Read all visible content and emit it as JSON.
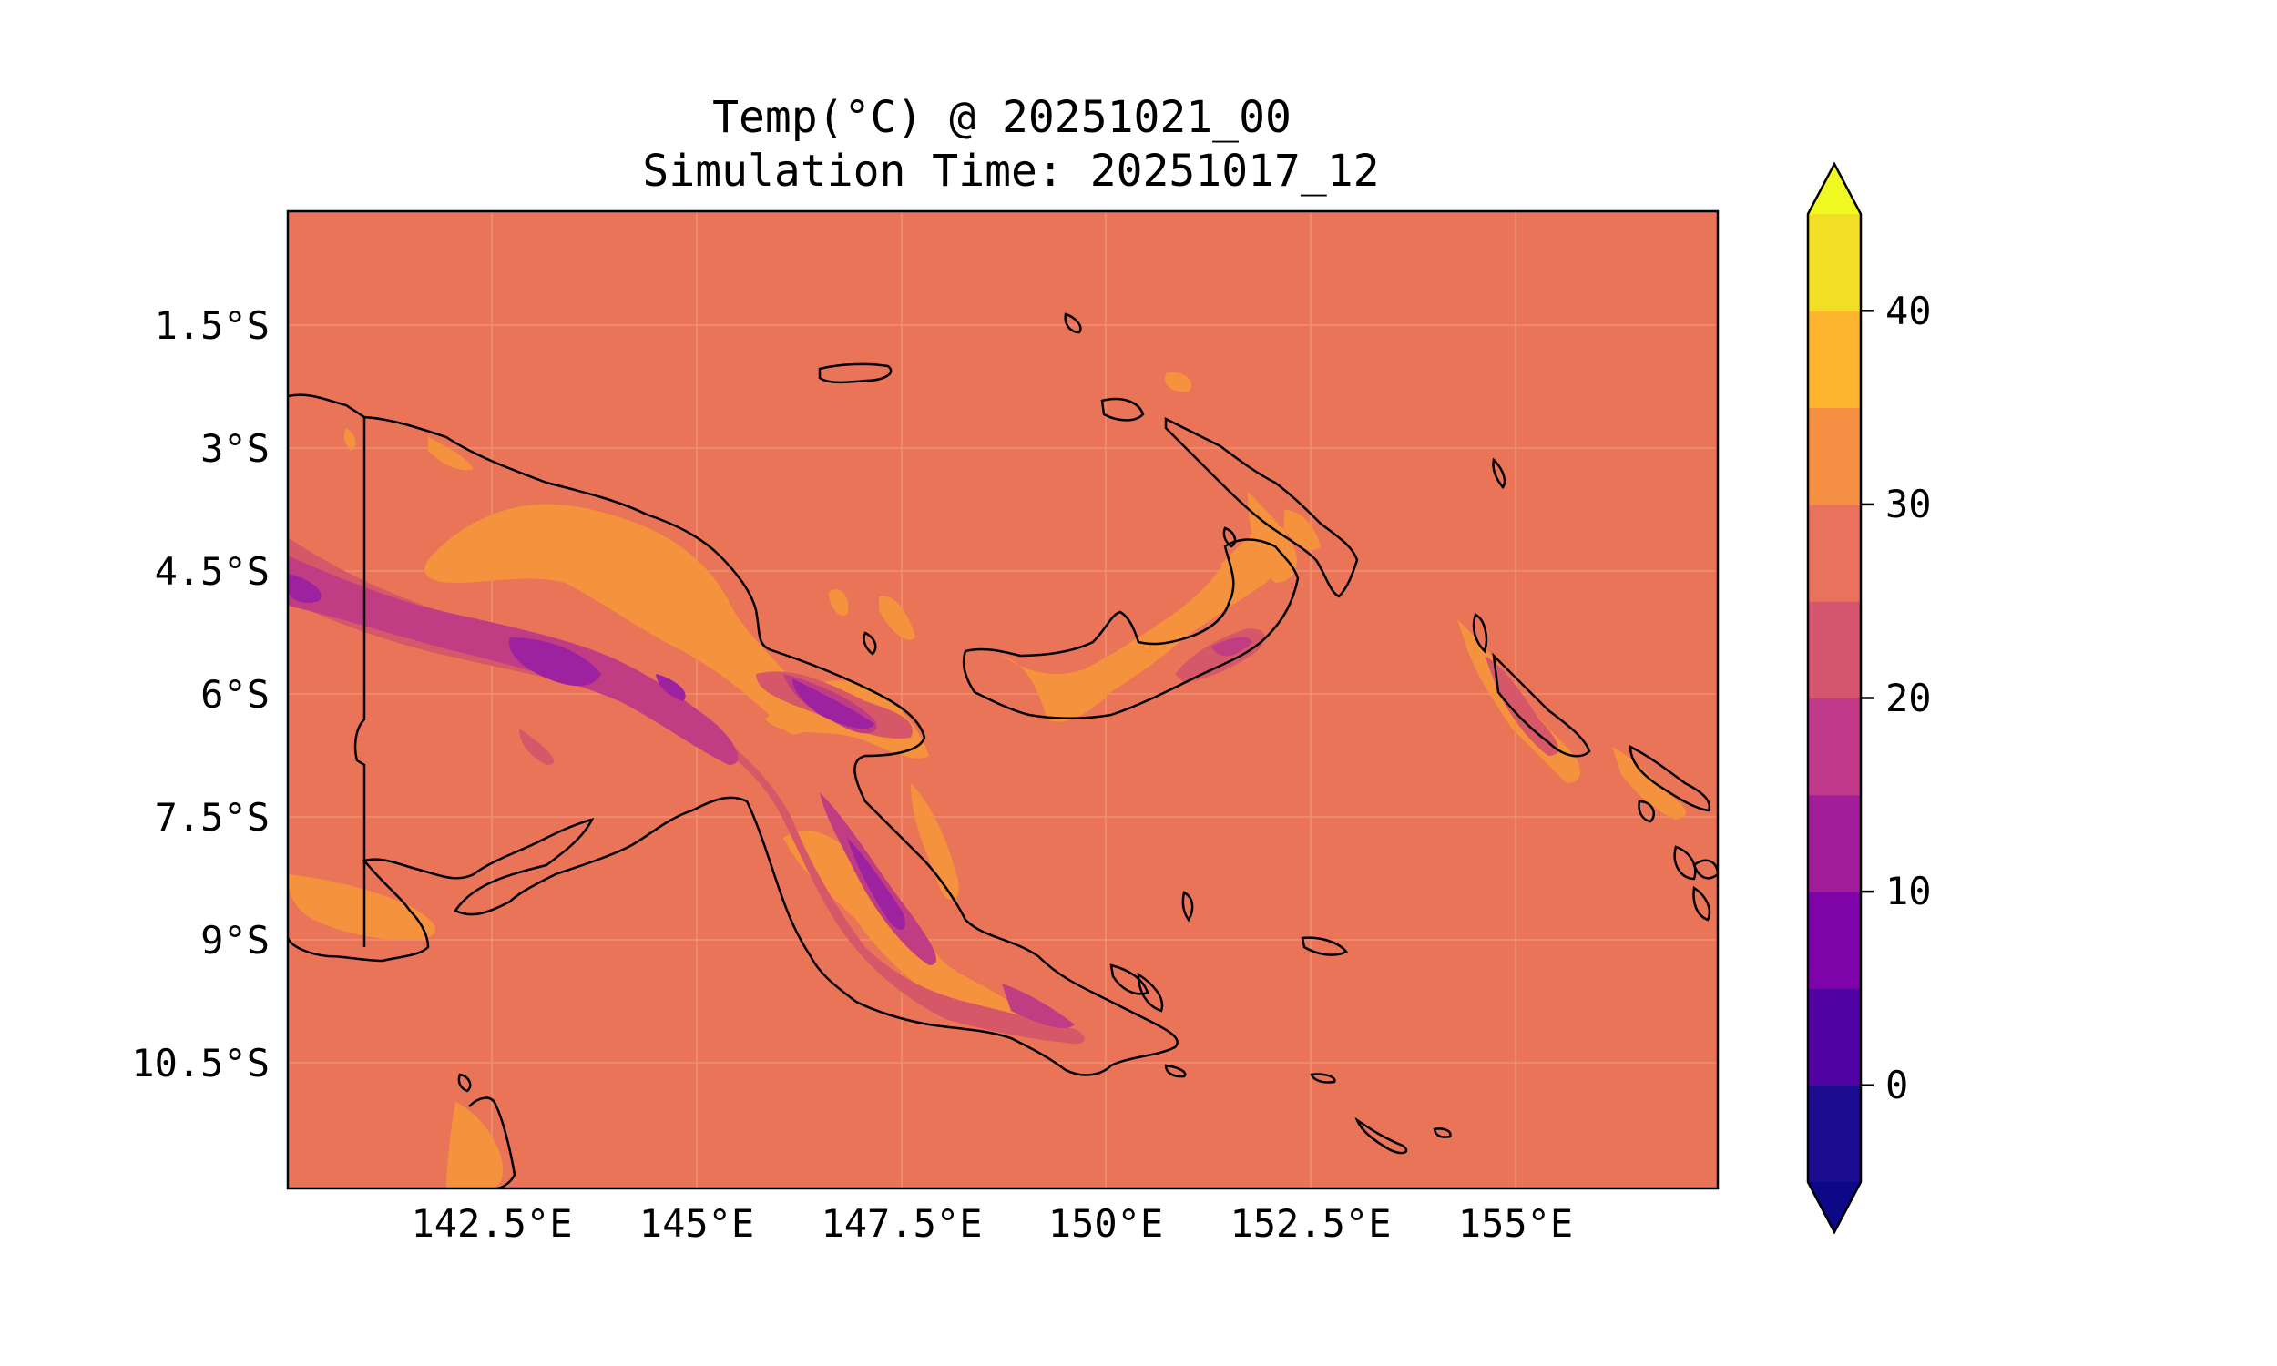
{
  "title": "Temp(°C) @ 20251021_00",
  "subtitle": "Simulation Time: 20251017_12",
  "colors": {
    "background": "#ea7457",
    "band_28_33": "#f5923d",
    "band_20_25": "#d65868",
    "band_15_20": "#c03d84",
    "band_10_15": "#9d22a0",
    "coastline": "#000000",
    "grid": "#f3a07e"
  },
  "map": {
    "x_ticks": [
      "142.5°E",
      "145°E",
      "147.5°E",
      "150°E",
      "152.5°E",
      "155°E"
    ],
    "y_ticks": [
      "1.5°S",
      "3°S",
      "4.5°S",
      "6°S",
      "7.5°S",
      "9°S",
      "10.5°S"
    ]
  },
  "colorbar": {
    "ticks": [
      "40",
      "30",
      "20",
      "10",
      "0"
    ],
    "levels": [
      -5,
      0,
      5,
      10,
      15,
      20,
      25,
      30,
      35,
      40,
      45
    ],
    "colors": [
      "#1c0c8f",
      "#5102a3",
      "#7e03a8",
      "#a21d9a",
      "#c0398a",
      "#d5546e",
      "#e9725e",
      "#f48f44",
      "#fdb42f",
      "#f1de25"
    ],
    "extend_low_color": "#0d0887",
    "extend_high_color": "#f0f921"
  }
}
